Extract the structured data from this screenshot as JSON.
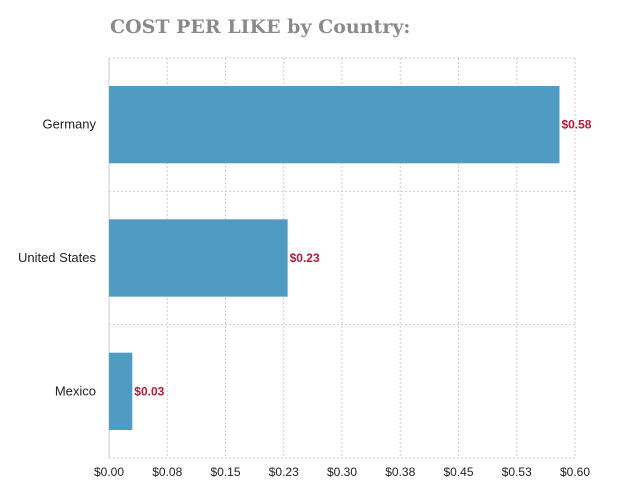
{
  "chart_data": {
    "type": "bar",
    "orientation": "horizontal",
    "title": "COST PER LIKE by Country:",
    "xlabel": "",
    "ylabel": "",
    "categories": [
      "Germany",
      "United States",
      "Mexico"
    ],
    "values": [
      0.58,
      0.23,
      0.03
    ],
    "value_labels": [
      "$0.58",
      "$0.23",
      "$0.03"
    ],
    "xlim": [
      0,
      0.6
    ],
    "x_ticks": [
      0.0,
      0.075,
      0.15,
      0.225,
      0.3,
      0.375,
      0.45,
      0.525,
      0.6
    ],
    "x_tick_labels": [
      "$0.00",
      "$0.08",
      "$0.15",
      "$0.23",
      "$0.30",
      "$0.38",
      "$0.45",
      "$0.53",
      "$0.60"
    ],
    "grid": true,
    "legend": "none"
  },
  "colors": {
    "bar": "#4f9bc1",
    "value_label": "#b41b3a",
    "title": "#8a8a8a",
    "grid": "#cccccc"
  }
}
